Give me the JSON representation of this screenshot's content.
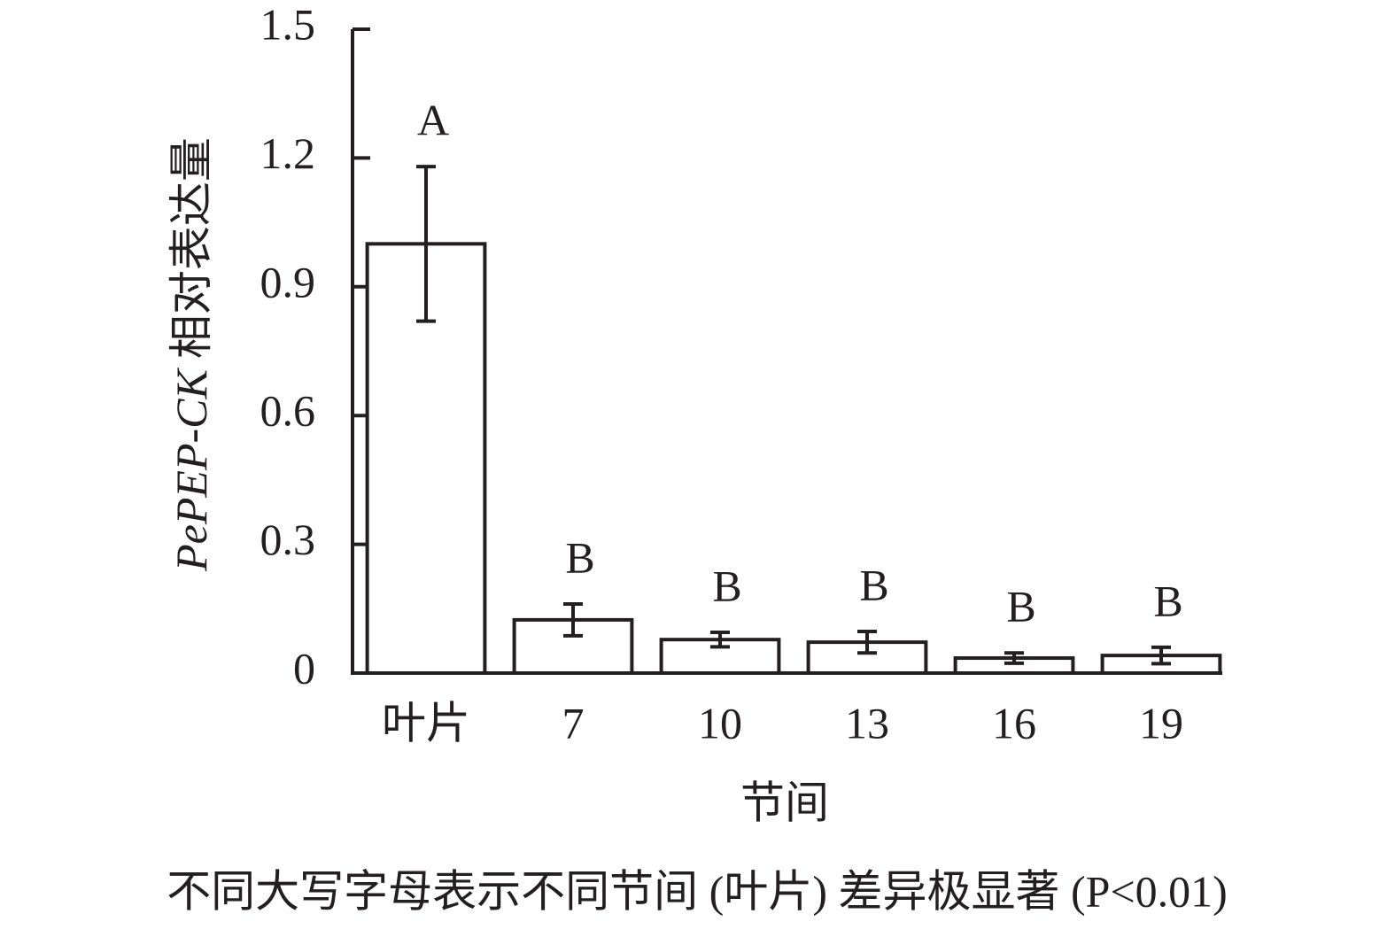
{
  "chart_data": {
    "type": "bar",
    "ylabel_gene": "PePEP-CK",
    "ylabel_text": "相对表达量",
    "xlabel": "节间",
    "footnote": "不同大写字母表示不同节间 (叶片) 差异极显著 (P<0.01)",
    "categories": [
      "叶片",
      "7",
      "10",
      "13",
      "16",
      "19"
    ],
    "values": [
      1.0,
      0.124,
      0.078,
      0.072,
      0.035,
      0.041
    ],
    "errors": [
      0.18,
      0.037,
      0.017,
      0.025,
      0.012,
      0.019
    ],
    "significance": [
      "A",
      "B",
      "B",
      "B",
      "B",
      "B"
    ],
    "color": "#ffffff",
    "edgecolor": "#231f20",
    "ylim": [
      0,
      1.5
    ],
    "yticks": [
      0,
      0.3,
      0.6,
      0.9,
      1.2,
      1.5
    ],
    "grid": false
  }
}
